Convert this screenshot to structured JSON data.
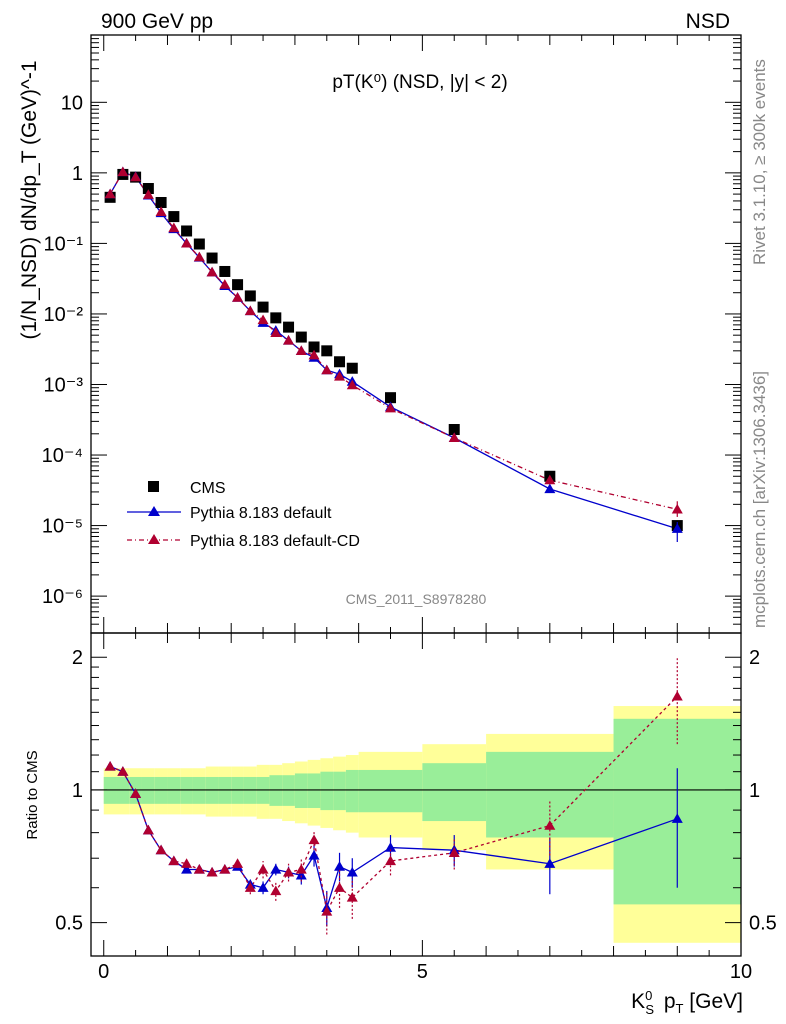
{
  "header": {
    "left": "900 GeV pp",
    "right": "NSD"
  },
  "side_labels": {
    "rivet": "Rivet 3.1.10, ≥ 300k events",
    "mcplots": "mcplots.cern.ch [arXiv:1306.3436]"
  },
  "colors": {
    "cms": "#000000",
    "default": "#0000cc",
    "cd": "#b00030",
    "band_inner": "#99ee99",
    "band_outer": "#ffff99"
  },
  "chart_data": [
    {
      "type": "scatter",
      "title": "pT(K⁰) (NSD, |y| < 2)",
      "ylabel": "(1/N_NSD) dN/dp_T (GeV)^-1",
      "yscale": "log",
      "ylim": [
        3e-07,
        90
      ],
      "xlim": [
        -0.2,
        10
      ],
      "y_ticks": [
        "10⁻⁶",
        "10⁻⁵",
        "10⁻⁴",
        "10⁻³",
        "10⁻²",
        "10⁻¹",
        "1",
        "10"
      ],
      "watermark": "CMS_2011_S8978280",
      "legend": [
        "CMS",
        "Pythia 8.183 default",
        "Pythia 8.183 default-CD"
      ],
      "legend_position": "bottom-left",
      "x": [
        0.1,
        0.3,
        0.5,
        0.7,
        0.9,
        1.1,
        1.3,
        1.5,
        1.7,
        1.9,
        2.1,
        2.3,
        2.5,
        2.7,
        2.9,
        3.1,
        3.3,
        3.5,
        3.7,
        3.9,
        4.5,
        5.5,
        7.0,
        9.0
      ],
      "series": [
        {
          "name": "CMS",
          "values": [
            0.45,
            0.95,
            0.87,
            0.6,
            0.38,
            0.24,
            0.15,
            0.098,
            0.062,
            0.04,
            0.026,
            0.018,
            0.0125,
            0.0088,
            0.0065,
            0.0047,
            0.0034,
            0.003,
            0.0021,
            0.0017,
            0.00065,
            0.00023,
            5e-05,
            1e-05
          ]
        },
        {
          "name": "Pythia 8.183 default",
          "values": [
            0.5,
            1.03,
            0.88,
            0.48,
            0.27,
            0.16,
            0.1,
            0.063,
            0.039,
            0.025,
            0.017,
            0.011,
            0.0075,
            0.0058,
            0.0042,
            0.003,
            0.0024,
            0.0016,
            0.0014,
            0.0011,
            0.00048,
            0.000175,
            3.3e-05,
            9e-06
          ]
        },
        {
          "name": "Pythia 8.183 default-CD",
          "values": [
            0.5,
            1.03,
            0.87,
            0.49,
            0.28,
            0.165,
            0.1,
            0.064,
            0.039,
            0.026,
            0.017,
            0.011,
            0.0082,
            0.0054,
            0.0042,
            0.003,
            0.0026,
            0.0016,
            0.0013,
            0.00098,
            0.00046,
            0.000175,
            4.4e-05,
            1.7e-05
          ]
        }
      ]
    },
    {
      "type": "scatter",
      "title": "",
      "ylabel": "Ratio to CMS",
      "xlabel": "K⁰S pT [GeV]",
      "ylim": [
        0.42,
        2.27
      ],
      "xlim": [
        -0.2,
        10
      ],
      "y_ticks": [
        "0.5",
        "1",
        "2"
      ],
      "x_ticks": [
        "0",
        "5",
        "10"
      ],
      "x": [
        0.1,
        0.3,
        0.5,
        0.7,
        0.9,
        1.1,
        1.3,
        1.5,
        1.7,
        1.9,
        2.1,
        2.3,
        2.5,
        2.7,
        2.9,
        3.1,
        3.3,
        3.5,
        3.7,
        3.9,
        4.5,
        5.5,
        7.0,
        9.0
      ],
      "series": [
        {
          "name": "Pythia 8.183 default",
          "values": [
            1.13,
            1.1,
            0.98,
            0.81,
            0.73,
            0.69,
            0.66,
            0.66,
            0.65,
            0.66,
            0.67,
            0.61,
            0.6,
            0.66,
            0.65,
            0.64,
            0.71,
            0.54,
            0.67,
            0.65,
            0.74,
            0.73,
            0.68,
            0.86
          ],
          "err": [
            0.01,
            0.01,
            0.01,
            0.01,
            0.01,
            0.01,
            0.01,
            0.01,
            0.01,
            0.01,
            0.01,
            0.015,
            0.02,
            0.02,
            0.02,
            0.03,
            0.04,
            0.05,
            0.05,
            0.05,
            0.05,
            0.06,
            0.1,
            0.26
          ]
        },
        {
          "name": "Pythia 8.183 default-CD",
          "values": [
            1.13,
            1.1,
            0.98,
            0.81,
            0.73,
            0.69,
            0.68,
            0.66,
            0.65,
            0.66,
            0.68,
            0.6,
            0.66,
            0.59,
            0.65,
            0.66,
            0.77,
            0.53,
            0.6,
            0.57,
            0.69,
            0.72,
            0.83,
            1.63
          ],
          "err": [
            0.01,
            0.01,
            0.01,
            0.01,
            0.01,
            0.01,
            0.01,
            0.01,
            0.01,
            0.01,
            0.015,
            0.02,
            0.03,
            0.03,
            0.03,
            0.04,
            0.04,
            0.06,
            0.06,
            0.06,
            0.05,
            0.06,
            0.12,
            0.36
          ]
        }
      ],
      "bands": {
        "edges": [
          0,
          0.2,
          0.4,
          0.6,
          0.8,
          1.0,
          1.2,
          1.4,
          1.6,
          1.8,
          2.0,
          2.2,
          2.4,
          2.6,
          2.8,
          3.0,
          3.2,
          3.4,
          3.6,
          3.8,
          4.0,
          5.0,
          6.0,
          8.0,
          10.0
        ],
        "inner": [
          0.07,
          0.07,
          0.07,
          0.07,
          0.07,
          0.07,
          0.07,
          0.07,
          0.07,
          0.07,
          0.07,
          0.07,
          0.07,
          0.08,
          0.08,
          0.09,
          0.09,
          0.1,
          0.1,
          0.11,
          0.11,
          0.15,
          0.22,
          0.45
        ],
        "outer": [
          0.12,
          0.12,
          0.12,
          0.12,
          0.12,
          0.12,
          0.12,
          0.12,
          0.13,
          0.13,
          0.13,
          0.13,
          0.14,
          0.14,
          0.15,
          0.16,
          0.17,
          0.18,
          0.19,
          0.2,
          0.22,
          0.27,
          0.34,
          0.55
        ]
      }
    }
  ]
}
